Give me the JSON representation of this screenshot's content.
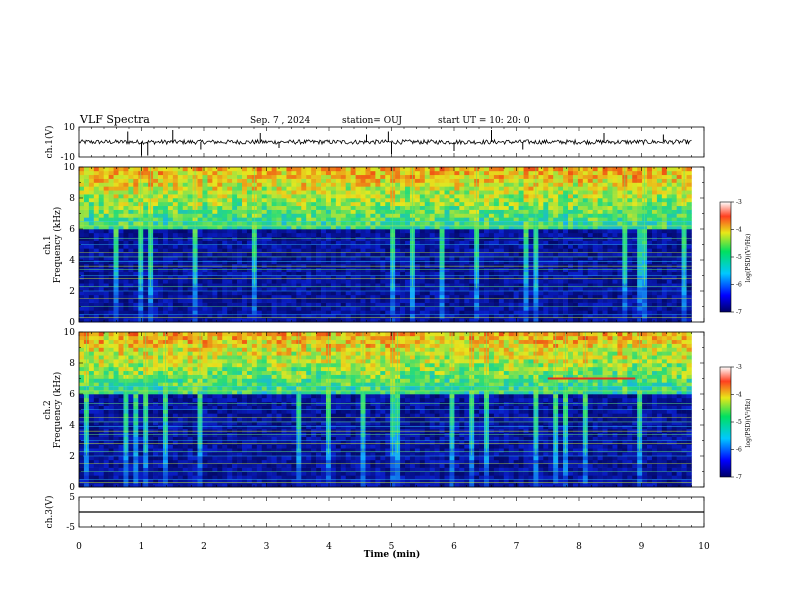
{
  "header": {
    "title": "VLF Spectra",
    "date": "Sep. 7 , 2024",
    "station": "station= OUJ",
    "start": "start UT =  10: 20: 0"
  },
  "colors": {
    "spectrogram_low": "#0a1a8c",
    "spectrogram_mid": "#22c0ff",
    "spectrogram_high": "#e8e818",
    "spectrogram_peak": "#d82020",
    "trace": "#000000"
  },
  "chart_data": [
    {
      "type": "line",
      "panel": "ch1-waveform",
      "ylabel": "ch.1(V)",
      "ylim": [
        -10,
        10
      ],
      "ytick_labels": [
        "10",
        "-10"
      ],
      "xlim": [
        0,
        10
      ],
      "trace_end_min": 9.8,
      "baseline_v": 0.0,
      "noise_amplitude_v": 1.5,
      "spikes": [
        {
          "x": 0.78,
          "y": 7
        },
        {
          "x": 1.0,
          "y": -9
        },
        {
          "x": 1.1,
          "y": -9
        },
        {
          "x": 1.5,
          "y": 8
        },
        {
          "x": 1.95,
          "y": -5
        },
        {
          "x": 2.9,
          "y": 6
        },
        {
          "x": 3.2,
          "y": -4
        },
        {
          "x": 4.6,
          "y": 5
        },
        {
          "x": 4.95,
          "y": 7
        },
        {
          "x": 5.0,
          "y": -8
        },
        {
          "x": 6.0,
          "y": -6
        },
        {
          "x": 6.6,
          "y": 8
        },
        {
          "x": 7.1,
          "y": -5
        },
        {
          "x": 8.4,
          "y": 6
        },
        {
          "x": 9.35,
          "y": 5
        }
      ]
    },
    {
      "type": "heatmap",
      "panel": "ch1-spectrogram",
      "ylabel": "ch.1\nFrequency (kHz)",
      "ylabel_lines": [
        "ch.1",
        "Frequency (kHz)"
      ],
      "ylim": [
        0,
        10
      ],
      "xlim": [
        0,
        10
      ],
      "ytick_labels": [
        "0",
        "2",
        "4",
        "6",
        "8",
        "10"
      ],
      "data_end_min": 9.8,
      "colorbar": {
        "label": "log(PSD)(V²/Hz)",
        "range": [
          -7,
          -3
        ],
        "tick_labels": [
          "-3",
          "-4",
          "-5",
          "-6",
          "-7"
        ]
      },
      "emission_band_khz": [
        6,
        10
      ],
      "narrowband_lines_khz": [
        0.3,
        0.5,
        1.0,
        1.5,
        2.0,
        2.3,
        2.8,
        3.0,
        3.4,
        3.6,
        3.9,
        4.2,
        4.5,
        5.0,
        5.4,
        6.2,
        6.5
      ]
    },
    {
      "type": "heatmap",
      "panel": "ch2-spectrogram",
      "ylabel": "ch.2\nFrequency (kHz)",
      "ylabel_lines": [
        "ch.2",
        "Frequency (kHz)"
      ],
      "ylim": [
        0,
        10
      ],
      "xlim": [
        0,
        10
      ],
      "ytick_labels": [
        "0",
        "2",
        "4",
        "6",
        "8",
        "10"
      ],
      "data_end_min": 9.8,
      "colorbar": {
        "label": "log(PSD)(V²/Hz)",
        "range": [
          -7,
          -3
        ],
        "tick_labels": [
          "-3",
          "-4",
          "-5",
          "-6",
          "-7"
        ]
      },
      "emission_band_khz": [
        6,
        10
      ],
      "narrowband_lines_khz": [
        0.3,
        0.5,
        1.0,
        1.5,
        2.0,
        2.3,
        2.8,
        3.0,
        3.4,
        3.6,
        3.9,
        4.2,
        4.5,
        5.0,
        5.4,
        6.2,
        6.5
      ],
      "tone_segment": {
        "x_start": 7.5,
        "x_end": 8.9,
        "y_khz": 7.0
      }
    },
    {
      "type": "line",
      "panel": "ch3-waveform",
      "ylabel": "ch.3(V)",
      "ylim": [
        -5,
        5
      ],
      "ytick_labels": [
        "5",
        "-5"
      ],
      "xlim": [
        0,
        10
      ],
      "constant_value_v": 0.0
    }
  ],
  "xaxis": {
    "label": "Time (min)",
    "tick_labels": [
      "0",
      "1",
      "2",
      "3",
      "4",
      "5",
      "6",
      "7",
      "8",
      "9",
      "10"
    ]
  }
}
